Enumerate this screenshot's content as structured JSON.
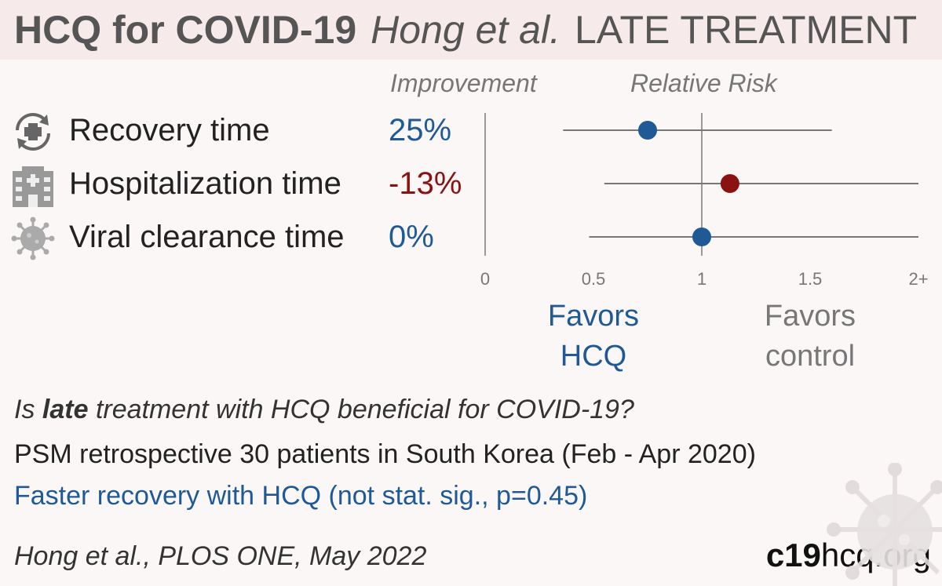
{
  "header": {
    "title": "HCQ for COVID-19",
    "authors": "Hong et al.",
    "stage": "LATE TREATMENT"
  },
  "columns": {
    "improvement": "Improvement",
    "relative_risk": "Relative Risk"
  },
  "outcomes": [
    {
      "label": "Recovery time",
      "improvement": "25%",
      "icon": "recovery-icon",
      "color": "#1f5a96"
    },
    {
      "label": "Hospitalization time",
      "improvement": "-13%",
      "icon": "hospital-icon",
      "color": "#8b1212"
    },
    {
      "label": "Viral clearance time",
      "improvement": "0%",
      "icon": "virus-icon",
      "color": "#1f5a96"
    }
  ],
  "chart_data": {
    "type": "scatter",
    "title": "Relative Risk",
    "xlabel": "",
    "ylabel": "",
    "xlim": [
      0,
      2
    ],
    "reference_line": 1,
    "tick_labels": [
      "0",
      "0.5",
      "1",
      "1.5",
      "2+"
    ],
    "tick_values": [
      0,
      0.5,
      1,
      1.5,
      2
    ],
    "categories": [
      "Recovery time",
      "Hospitalization time",
      "Viral clearance time"
    ],
    "series": [
      {
        "points": [
          {
            "category": "Recovery time",
            "rr": 0.75,
            "ci_low": 0.36,
            "ci_high": 1.6,
            "color": "#1f5a96"
          },
          {
            "category": "Hospitalization time",
            "rr": 1.13,
            "ci_low": 0.55,
            "ci_high": 2.0,
            "color": "#8b1212"
          },
          {
            "category": "Viral clearance time",
            "rr": 1.0,
            "ci_low": 0.48,
            "ci_high": 2.0,
            "color": "#1f5a96"
          }
        ]
      }
    ],
    "annotations": {
      "favors_left": "Favors\nHCQ",
      "favors_right": "Favors\ncontrol"
    },
    "grid": false
  },
  "summary": {
    "question_prefix": "Is ",
    "question_bold": "late",
    "question_suffix": " treatment with HCQ beneficial for COVID-19?",
    "design": "PSM retrospective 30 patients in South Korea (Feb - Apr 2020)",
    "result": "Faster recovery with HCQ (not stat. sig., p=0.45)"
  },
  "footer": {
    "citation": "Hong et al., PLOS ONE, May 2022",
    "site_bold": "c19",
    "site_rest": "hcq.org"
  },
  "colors": {
    "accent_blue": "#1f5a96",
    "accent_red": "#8b1212",
    "header_bg": "#f6eaea",
    "page_bg": "#fcf7f7"
  }
}
